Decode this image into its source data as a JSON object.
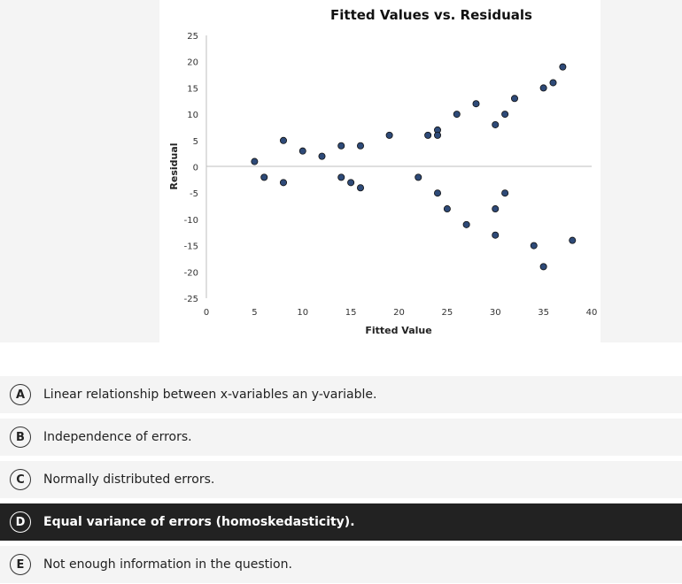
{
  "chart_data": {
    "type": "scatter",
    "title": "Fitted Values vs. Residuals",
    "xlabel": "Fitted Value",
    "ylabel": "Residual",
    "xlim": [
      0,
      40
    ],
    "ylim": [
      -25,
      25
    ],
    "xticks": [
      0,
      5,
      10,
      15,
      20,
      25,
      30,
      35,
      40
    ],
    "yticks": [
      25,
      20,
      15,
      10,
      5,
      0,
      -5,
      -10,
      -15,
      -20,
      -25
    ],
    "grid": false,
    "marker_color": "#2e4a78",
    "points": [
      [
        5,
        1
      ],
      [
        6,
        -2
      ],
      [
        8,
        5
      ],
      [
        8,
        -3
      ],
      [
        10,
        3
      ],
      [
        12,
        2
      ],
      [
        14,
        4
      ],
      [
        14,
        -2
      ],
      [
        15,
        -3
      ],
      [
        16,
        4
      ],
      [
        16,
        -4
      ],
      [
        19,
        6
      ],
      [
        22,
        -2
      ],
      [
        23,
        6
      ],
      [
        24,
        7
      ],
      [
        24,
        6
      ],
      [
        24,
        -5
      ],
      [
        25,
        -8
      ],
      [
        26,
        10
      ],
      [
        27,
        -11
      ],
      [
        28,
        12
      ],
      [
        30,
        8
      ],
      [
        30,
        -8
      ],
      [
        30,
        -13
      ],
      [
        31,
        10
      ],
      [
        31,
        -5
      ],
      [
        32,
        13
      ],
      [
        34,
        -15
      ],
      [
        35,
        15
      ],
      [
        35,
        -19
      ],
      [
        36,
        16
      ],
      [
        37,
        19
      ],
      [
        38,
        -14
      ]
    ]
  },
  "options": [
    {
      "letter": "A",
      "text": "Linear relationship between x-variables an y-variable.",
      "selected": false
    },
    {
      "letter": "B",
      "text": "Independence of errors.",
      "selected": false
    },
    {
      "letter": "C",
      "text": "Normally distributed errors.",
      "selected": false
    },
    {
      "letter": "D",
      "text": "Equal variance of errors (homoskedasticity).",
      "selected": true
    },
    {
      "letter": "E",
      "text": "Not enough information in the question.",
      "selected": false
    }
  ]
}
